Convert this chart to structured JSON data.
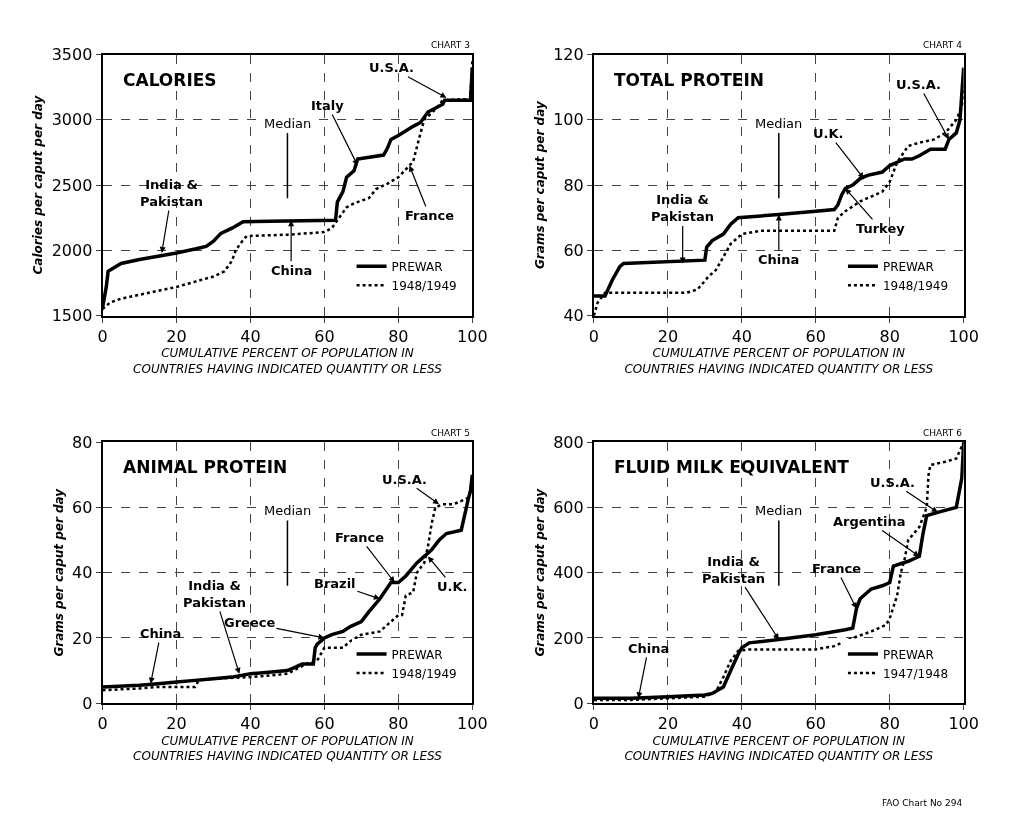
{
  "chart_data": [
    {
      "type": "line",
      "title": "CALORIES",
      "xlabel": "CUMULATIVE PERCENT OF POPULATION IN\nCOUNTRIES HAVING INDICATED QUANTITY OR LESS",
      "ylabel": "Calories per caput per day",
      "xlim": [
        0,
        100
      ],
      "ylim": [
        1500,
        3500
      ],
      "xticks": [
        0,
        20,
        40,
        60,
        80,
        100
      ],
      "yticks": [
        1500,
        2000,
        2500,
        3000,
        3500
      ],
      "grid": true,
      "legend": "bottom right",
      "series": [
        {
          "name": "PREWAR",
          "color": "#000000",
          "line_style": "solid",
          "x": [
            0,
            1,
            1.5,
            5,
            10,
            20,
            25,
            28,
            30,
            32,
            35,
            38,
            63,
            63.5,
            65,
            66,
            68,
            69,
            76,
            77,
            78,
            80,
            84,
            86,
            88,
            92,
            92.5,
            99.5,
            100
          ],
          "values": [
            1560,
            1720,
            1840,
            1900,
            1930,
            1980,
            2010,
            2030,
            2070,
            2130,
            2170,
            2220,
            2230,
            2370,
            2450,
            2560,
            2610,
            2700,
            2730,
            2780,
            2850,
            2880,
            2950,
            2980,
            3060,
            3120,
            3150,
            3150,
            3400
          ]
        },
        {
          "name": "1948/1949",
          "color": "#000000",
          "line_style": "dotted",
          "x": [
            0,
            2,
            5,
            10,
            15,
            20,
            25,
            30,
            33,
            35,
            36,
            38,
            39,
            50,
            60,
            62,
            64,
            66,
            68,
            72,
            74,
            77,
            80,
            82,
            84,
            86,
            87,
            90,
            92,
            99.5,
            100
          ],
          "values": [
            1550,
            1600,
            1630,
            1660,
            1690,
            1720,
            1760,
            1800,
            1840,
            1920,
            2000,
            2080,
            2110,
            2120,
            2140,
            2170,
            2250,
            2330,
            2360,
            2400,
            2470,
            2510,
            2560,
            2620,
            2680,
            2900,
            3000,
            3080,
            3150,
            3160,
            3450
          ]
        }
      ],
      "ref_lines": [
        {
          "axis": "x",
          "value": 50,
          "label": "Median"
        }
      ],
      "annotations": [
        "CHART 3",
        {
          "text": "India &\nPakistan",
          "x": 16,
          "y": 1980
        },
        {
          "text": "China",
          "x": 51,
          "y": 2230
        },
        {
          "text": "Italy",
          "x": 69,
          "y": 2650
        },
        {
          "text": "France",
          "x": 83,
          "y": 2650
        },
        {
          "text": "U.S.A.",
          "x": 93,
          "y": 3170
        }
      ]
    },
    {
      "type": "line",
      "title": "TOTAL PROTEIN",
      "xlabel": "CUMULATIVE PERCENT OF POPULATION IN\nCOUNTRIES HAVING INDICATED QUANTITY OR LESS",
      "ylabel": "Grams per caput per day",
      "xlim": [
        0,
        100
      ],
      "ylim": [
        40,
        120
      ],
      "xticks": [
        0,
        20,
        40,
        60,
        80,
        100
      ],
      "yticks": [
        40,
        60,
        80,
        100,
        120
      ],
      "grid": true,
      "legend": "bottom right",
      "series": [
        {
          "name": "PREWAR",
          "color": "#000000",
          "line_style": "solid",
          "x": [
            0,
            3,
            5,
            7,
            8,
            30,
            30.5,
            32,
            35,
            37,
            39,
            50,
            60,
            65,
            66,
            67,
            68,
            70,
            72,
            74,
            78,
            80,
            82,
            84,
            86,
            88,
            91,
            95,
            96,
            98,
            99,
            99.5,
            100
          ],
          "values": [
            46,
            46,
            51,
            55,
            56,
            57,
            61,
            63,
            65,
            68,
            70,
            71,
            72,
            72.5,
            74,
            77,
            79,
            80,
            82,
            83,
            84,
            86,
            87,
            88,
            88,
            89,
            91,
            91,
            94,
            96,
            100,
            108,
            116
          ]
        },
        {
          "name": "1948/1949",
          "color": "#000000",
          "line_style": "dotted",
          "x": [
            0,
            1,
            3,
            25,
            28,
            31,
            33,
            35,
            37,
            40,
            45,
            65,
            66,
            68,
            72,
            78,
            80,
            82,
            85,
            88,
            92,
            95,
            98,
            99.5,
            100
          ],
          "values": [
            40,
            44,
            47,
            47,
            48,
            52,
            54,
            58,
            62,
            65,
            66,
            66,
            70,
            72,
            75,
            78,
            81,
            87,
            92,
            93,
            94,
            96,
            100,
            104,
            110
          ]
        }
      ],
      "ref_lines": [
        {
          "axis": "x",
          "value": 50,
          "label": "Median"
        }
      ],
      "annotations": [
        "CHART 4",
        {
          "text": "India &\nPakistan",
          "x": 24,
          "y": 56
        },
        {
          "text": "China",
          "x": 50,
          "y": 71
        },
        {
          "text": "Turkey",
          "x": 68,
          "y": 79
        },
        {
          "text": "U.K.",
          "x": 73,
          "y": 82
        },
        {
          "text": "U.S.A.",
          "x": 96,
          "y": 94
        }
      ]
    },
    {
      "type": "line",
      "title": "ANIMAL PROTEIN",
      "xlabel": "CUMULATIVE PERCENT OF POPULATION IN\nCOUNTRIES HAVING INDICATED QUANTITY OR LESS",
      "ylabel": "Grams per caput per day",
      "xlim": [
        0,
        100
      ],
      "ylim": [
        0,
        80
      ],
      "xticks": [
        0,
        20,
        40,
        60,
        80,
        100
      ],
      "yticks": [
        0,
        20,
        40,
        60,
        80
      ],
      "grid": true,
      "legend": "bottom right",
      "series": [
        {
          "name": "PREWAR",
          "color": "#000000",
          "line_style": "solid",
          "x": [
            0,
            10,
            15,
            20,
            25,
            30,
            35,
            40,
            45,
            50,
            52,
            54,
            57,
            57.5,
            58,
            60,
            62,
            65,
            67,
            70,
            72,
            75,
            78,
            80,
            82,
            85,
            87,
            89,
            91,
            93,
            97,
            99,
            99.5,
            100
          ],
          "values": [
            5,
            5.5,
            6,
            6.5,
            7,
            7.5,
            8,
            9,
            9.5,
            10,
            11,
            12,
            12,
            17,
            18,
            20,
            21,
            22,
            23.5,
            25,
            28,
            32,
            37,
            37,
            39,
            43,
            45,
            47,
            50,
            52,
            53,
            63,
            65,
            70
          ]
        },
        {
          "name": "1948/1949",
          "color": "#000000",
          "line_style": "dotted",
          "x": [
            0,
            10,
            15,
            20,
            25,
            26,
            30,
            40,
            50,
            55,
            58,
            60,
            65,
            67,
            70,
            75,
            77,
            80,
            81,
            82,
            84,
            85,
            87,
            88,
            89,
            90,
            92,
            95,
            99,
            100
          ],
          "values": [
            4,
            4.5,
            5,
            5,
            5,
            7,
            7.5,
            8,
            9,
            12,
            13,
            17,
            17,
            19,
            21,
            22,
            24,
            27,
            27,
            33,
            34,
            40,
            43,
            48,
            55,
            60,
            61,
            61,
            63,
            68
          ]
        }
      ],
      "ref_lines": [
        {
          "axis": "x",
          "value": 50,
          "label": "Median"
        }
      ],
      "annotations": [
        "CHART 5",
        {
          "text": "China",
          "x": 13,
          "y": 6
        },
        {
          "text": "India &\nPakistan",
          "x": 37,
          "y": 9
        },
        {
          "text": "Greece",
          "x": 60,
          "y": 20
        },
        {
          "text": "Brazil",
          "x": 75,
          "y": 32
        },
        {
          "text": "France",
          "x": 79,
          "y": 37
        },
        {
          "text": "U.K.",
          "x": 88,
          "y": 45
        },
        {
          "text": "U.S.A.",
          "x": 91,
          "y": 61
        }
      ]
    },
    {
      "type": "line",
      "title": "FLUID MILK EQUIVALENT",
      "xlabel": "CUMULATIVE PERCENT OF POPULATION IN\nCOUNTRIES HAVING INDICATED QUANTITY OR LESS",
      "ylabel": "Grams per caput per day",
      "xlim": [
        0,
        100
      ],
      "ylim": [
        0,
        800
      ],
      "xticks": [
        0,
        20,
        40,
        60,
        80,
        100
      ],
      "yticks": [
        0,
        200,
        400,
        600,
        800
      ],
      "grid": true,
      "legend": "bottom right",
      "series": [
        {
          "name": "PREWAR",
          "color": "#000000",
          "line_style": "solid",
          "x": [
            0,
            10,
            20,
            30,
            32,
            35,
            37,
            39,
            40,
            42,
            50,
            60,
            68,
            70,
            71,
            72,
            75,
            78,
            80,
            81,
            85,
            88,
            89,
            90,
            93,
            98,
            99,
            99.5,
            100
          ],
          "values": [
            15,
            15,
            20,
            25,
            30,
            50,
            100,
            150,
            170,
            185,
            195,
            210,
            225,
            230,
            290,
            320,
            350,
            360,
            370,
            420,
            435,
            450,
            520,
            575,
            585,
            600,
            660,
            690,
            800
          ]
        },
        {
          "name": "1947/1948",
          "color": "#000000",
          "line_style": "dotted",
          "x": [
            0,
            10,
            20,
            30,
            33,
            35,
            37,
            39,
            42,
            50,
            60,
            65,
            70,
            75,
            79,
            80,
            82,
            83,
            84,
            85,
            88,
            90,
            90.5,
            91,
            95,
            98,
            100
          ],
          "values": [
            10,
            10,
            15,
            20,
            35,
            80,
            130,
            160,
            165,
            165,
            165,
            175,
            200,
            220,
            240,
            260,
            330,
            400,
            440,
            500,
            540,
            600,
            700,
            730,
            740,
            750,
            800
          ]
        }
      ],
      "ref_lines": [
        {
          "axis": "x",
          "value": 50,
          "label": "Median"
        }
      ],
      "annotations": [
        "CHART 6",
        "FAO Chart No 294",
        {
          "text": "China",
          "x": 12,
          "y": 15
        },
        {
          "text": "India &\nPakistan",
          "x": 50,
          "y": 195
        },
        {
          "text": "France",
          "x": 71,
          "y": 290
        },
        {
          "text": "Argentina",
          "x": 88,
          "y": 450
        },
        {
          "text": "U.S.A.",
          "x": 93,
          "y": 585
        }
      ]
    }
  ]
}
